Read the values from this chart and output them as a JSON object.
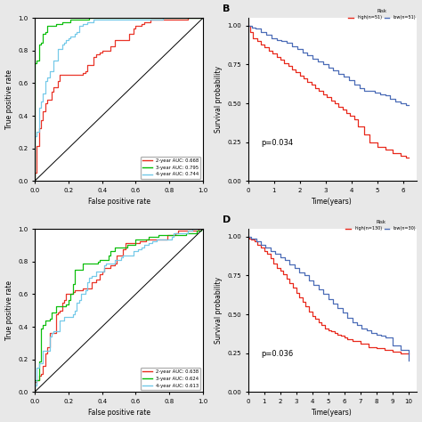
{
  "panel_A": {
    "curves": [
      {
        "name": "2-year AUC: 0.668",
        "color": "#e8291c",
        "auc": 0.668,
        "seed": 0
      },
      {
        "name": "3-year AUC: 0.795",
        "color": "#00bb00",
        "auc": 0.795,
        "seed": 10
      },
      {
        "name": "4-year AUC: 0.744",
        "color": "#6fc8e8",
        "auc": 0.744,
        "seed": 20
      }
    ],
    "xlabel": "False positive rate",
    "ylabel": "True positive rate",
    "xlim": [
      0,
      1
    ],
    "ylim": [
      0,
      1
    ],
    "xticks": [
      0.0,
      0.2,
      0.4,
      0.6,
      0.8,
      1.0
    ],
    "yticks": [
      0.0,
      0.2,
      0.4,
      0.6,
      0.8,
      1.0
    ]
  },
  "panel_B": {
    "label": "B",
    "xlabel": "Time(years)",
    "ylabel": "Survival probability",
    "xlim": [
      0,
      6.5
    ],
    "ylim": [
      0,
      1.05
    ],
    "xticks": [
      0,
      1,
      2,
      3,
      4,
      5,
      6
    ],
    "yticks": [
      0.0,
      0.25,
      0.5,
      0.75,
      1.0
    ],
    "pvalue": "p=0.034",
    "legend_title": "Risk",
    "high_label": "high(n=51)",
    "low_label": "low(n=51)",
    "high_color": "#e8291c",
    "low_color": "#4b6cb7",
    "high_times": [
      0,
      0.1,
      0.2,
      0.35,
      0.5,
      0.65,
      0.8,
      0.95,
      1.1,
      1.25,
      1.4,
      1.55,
      1.7,
      1.85,
      2.0,
      2.15,
      2.3,
      2.45,
      2.6,
      2.75,
      2.9,
      3.05,
      3.2,
      3.35,
      3.5,
      3.65,
      3.8,
      3.95,
      4.1,
      4.25,
      4.5,
      4.7,
      5.0,
      5.3,
      5.6,
      5.9,
      6.1,
      6.2
    ],
    "high_surv": [
      1.0,
      0.96,
      0.92,
      0.9,
      0.88,
      0.86,
      0.84,
      0.82,
      0.8,
      0.78,
      0.76,
      0.74,
      0.72,
      0.7,
      0.68,
      0.66,
      0.64,
      0.62,
      0.6,
      0.58,
      0.56,
      0.54,
      0.52,
      0.5,
      0.48,
      0.46,
      0.44,
      0.42,
      0.4,
      0.35,
      0.3,
      0.25,
      0.22,
      0.2,
      0.18,
      0.16,
      0.15,
      0.15
    ],
    "low_times": [
      0,
      0.15,
      0.3,
      0.5,
      0.7,
      0.9,
      1.1,
      1.3,
      1.5,
      1.7,
      1.9,
      2.1,
      2.3,
      2.5,
      2.7,
      2.9,
      3.1,
      3.3,
      3.5,
      3.7,
      3.9,
      4.1,
      4.3,
      4.5,
      4.7,
      4.9,
      5.1,
      5.3,
      5.5,
      5.7,
      5.9,
      6.1,
      6.2
    ],
    "low_surv": [
      1.0,
      0.99,
      0.98,
      0.96,
      0.94,
      0.92,
      0.91,
      0.9,
      0.89,
      0.87,
      0.85,
      0.83,
      0.81,
      0.79,
      0.77,
      0.75,
      0.73,
      0.71,
      0.69,
      0.67,
      0.65,
      0.62,
      0.6,
      0.58,
      0.58,
      0.57,
      0.56,
      0.55,
      0.53,
      0.51,
      0.5,
      0.49,
      0.49
    ]
  },
  "panel_C": {
    "curves": [
      {
        "name": "2-year AUC: 0.638",
        "color": "#e8291c",
        "auc": 0.638,
        "seed": 5
      },
      {
        "name": "3-year AUC: 0.624",
        "color": "#00bb00",
        "auc": 0.624,
        "seed": 15
      },
      {
        "name": "4-year AUC: 0.613",
        "color": "#6fc8e8",
        "auc": 0.613,
        "seed": 25
      }
    ],
    "xlabel": "False positive rate",
    "ylabel": "True positive rate",
    "xlim": [
      0,
      1
    ],
    "ylim": [
      0,
      1
    ],
    "xticks": [
      0.0,
      0.2,
      0.4,
      0.6,
      0.8,
      1.0
    ],
    "yticks": [
      0.0,
      0.2,
      0.4,
      0.6,
      0.8,
      1.0
    ]
  },
  "panel_D": {
    "label": "D",
    "xlabel": "Time(years)",
    "ylabel": "Survival probability",
    "xlim": [
      0,
      10.5
    ],
    "ylim": [
      0,
      1.05
    ],
    "xticks": [
      0,
      1,
      2,
      3,
      4,
      5,
      6,
      7,
      8,
      9,
      10
    ],
    "yticks": [
      0.0,
      0.25,
      0.5,
      0.75,
      1.0
    ],
    "pvalue": "p=0.036",
    "legend_title": "Risk",
    "high_label": "high(n=130)",
    "low_label": "low(n=30)",
    "high_color": "#e8291c",
    "low_color": "#4b6cb7",
    "high_times": [
      0,
      0.1,
      0.2,
      0.4,
      0.6,
      0.8,
      1.0,
      1.2,
      1.4,
      1.6,
      1.8,
      2.0,
      2.2,
      2.4,
      2.6,
      2.8,
      3.0,
      3.2,
      3.4,
      3.6,
      3.8,
      4.0,
      4.2,
      4.4,
      4.6,
      4.8,
      5.0,
      5.2,
      5.4,
      5.6,
      5.8,
      6.0,
      6.2,
      6.5,
      7.0,
      7.5,
      8.0,
      8.5,
      9.0,
      9.5,
      10.0
    ],
    "high_surv": [
      1.0,
      0.99,
      0.98,
      0.97,
      0.95,
      0.93,
      0.91,
      0.89,
      0.86,
      0.83,
      0.8,
      0.78,
      0.76,
      0.73,
      0.7,
      0.67,
      0.64,
      0.61,
      0.58,
      0.55,
      0.52,
      0.49,
      0.47,
      0.45,
      0.43,
      0.41,
      0.4,
      0.39,
      0.38,
      0.37,
      0.36,
      0.35,
      0.34,
      0.33,
      0.31,
      0.29,
      0.28,
      0.27,
      0.26,
      0.25,
      0.25
    ],
    "low_times": [
      0,
      0.2,
      0.5,
      0.8,
      1.1,
      1.4,
      1.7,
      2.0,
      2.3,
      2.6,
      2.9,
      3.2,
      3.5,
      3.8,
      4.1,
      4.4,
      4.7,
      5.0,
      5.3,
      5.6,
      5.9,
      6.2,
      6.5,
      6.8,
      7.1,
      7.4,
      7.7,
      8.0,
      8.3,
      8.6,
      9.0,
      9.5,
      10.0
    ],
    "low_surv": [
      1.0,
      0.99,
      0.97,
      0.95,
      0.93,
      0.91,
      0.89,
      0.87,
      0.85,
      0.82,
      0.8,
      0.77,
      0.75,
      0.72,
      0.69,
      0.66,
      0.63,
      0.6,
      0.57,
      0.54,
      0.51,
      0.48,
      0.45,
      0.43,
      0.41,
      0.4,
      0.38,
      0.37,
      0.36,
      0.35,
      0.3,
      0.27,
      0.2
    ]
  },
  "fig_bg": "#e8e8e8"
}
